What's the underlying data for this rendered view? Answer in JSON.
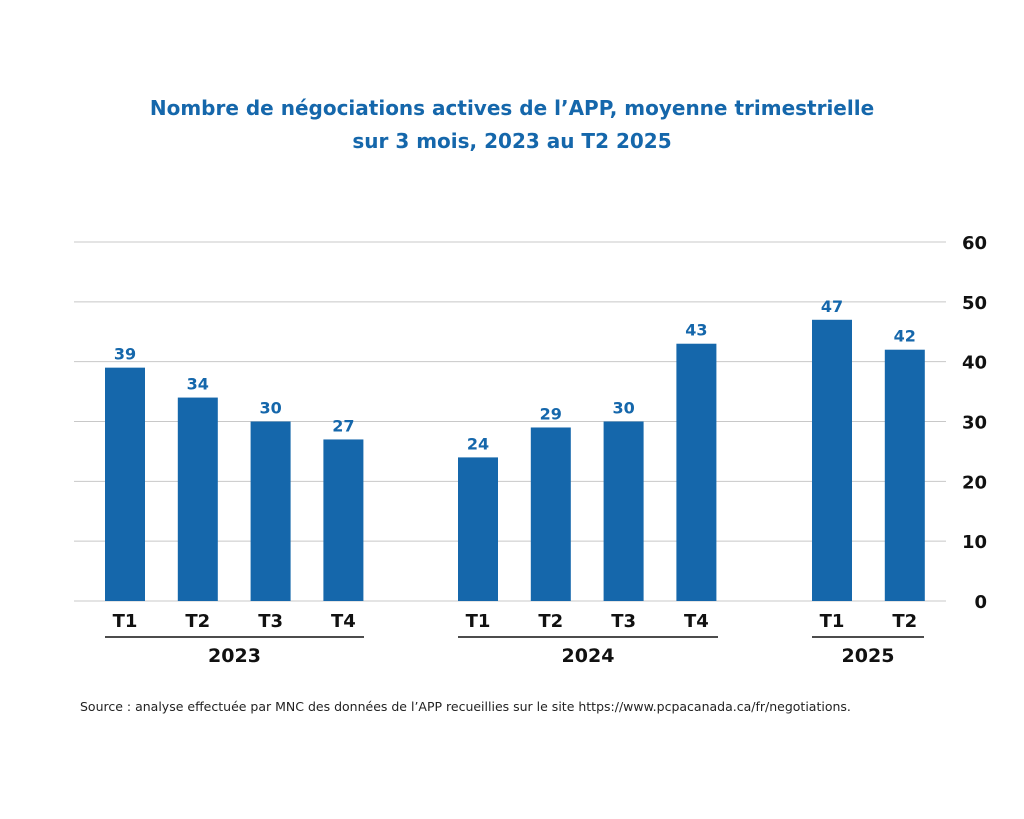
{
  "title_line1": "Nombre de négociations actives de l’APP, moyenne trimestrielle",
  "title_line2": "sur 3 mois, 2023 au T2 2025",
  "source": "Source : analyse effectuée par MNC des données de l’APP recueillies sur le site https://www.pcpacanada.ca/fr/negotiations.",
  "colors": {
    "bar": "#1567ab",
    "label": "#1567ab",
    "grid": "#c8c8c8",
    "axis_text": "#111111"
  },
  "chart_data": {
    "type": "bar",
    "title": "Nombre de négociations actives de l’APP, moyenne trimestrielle sur 3 mois, 2023 au T2 2025",
    "xlabel": "",
    "ylabel": "",
    "ylim": [
      0,
      60
    ],
    "yticks": [
      "0",
      "10",
      "20",
      "30",
      "40",
      "50",
      "60"
    ],
    "y_axis_side": "right",
    "grid": true,
    "groups": [
      {
        "label": "2023",
        "categories": [
          "T1",
          "T2",
          "T3",
          "T4"
        ],
        "values": [
          39,
          34,
          30,
          27
        ],
        "data_labels": [
          "39",
          "34",
          "30",
          "27"
        ]
      },
      {
        "label": "2024",
        "categories": [
          "T1",
          "T2",
          "T3",
          "T4"
        ],
        "values": [
          24,
          29,
          30,
          43
        ],
        "data_labels": [
          "24",
          "29",
          "30",
          "43"
        ]
      },
      {
        "label": "2025",
        "categories": [
          "T1",
          "T2"
        ],
        "values": [
          47,
          42
        ],
        "data_labels": [
          "47",
          "42"
        ]
      }
    ]
  }
}
